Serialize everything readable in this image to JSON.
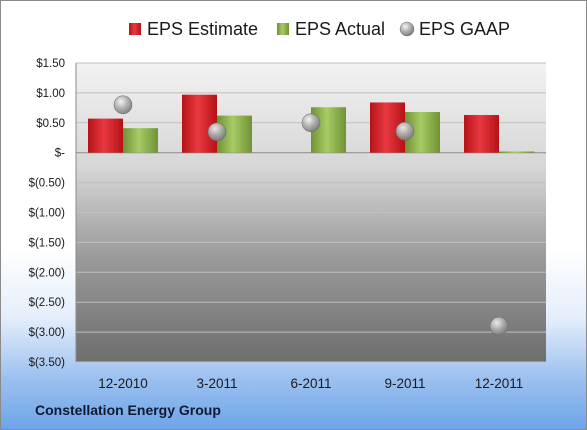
{
  "footer": {
    "company": "Constellation Energy Group"
  },
  "legend": [
    {
      "label": "EPS Estimate"
    },
    {
      "label": "EPS Actual"
    },
    {
      "label": "EPS GAAP"
    }
  ],
  "colors": {
    "estimate": "#d42026",
    "actual": "#8db34a",
    "gaap": "#a6a6a6"
  },
  "chart_data": {
    "type": "bar",
    "categories": [
      "12-2010",
      "3-2011",
      "6-2011",
      "9-2011",
      "12-2011"
    ],
    "series": [
      {
        "name": "EPS Estimate",
        "type": "bar",
        "values": [
          0.57,
          0.97,
          null,
          0.84,
          0.63
        ]
      },
      {
        "name": "EPS Actual",
        "type": "bar",
        "values": [
          0.41,
          0.62,
          0.76,
          0.68,
          0.02
        ]
      },
      {
        "name": "EPS GAAP",
        "type": "marker",
        "values": [
          0.8,
          0.35,
          0.5,
          0.36,
          -2.9
        ]
      }
    ],
    "y_tick_labels": [
      "$1.50",
      "$1.00",
      "$0.50",
      "$-",
      "$(0.50)",
      "$(1.00)",
      "$(1.50)",
      "$(2.00)",
      "$(2.50)",
      "$(3.00)",
      "$(3.50)"
    ],
    "y_tick_values": [
      1.5,
      1.0,
      0.5,
      0,
      -0.5,
      -1.0,
      -1.5,
      -2.0,
      -2.5,
      -3.0,
      -3.5
    ],
    "ylim": [
      -3.5,
      1.5
    ],
    "grid": true,
    "legend_position": "top"
  }
}
